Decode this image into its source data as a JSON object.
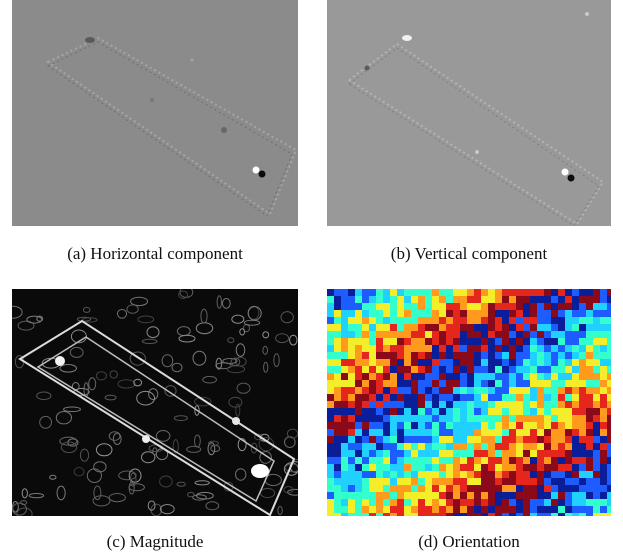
{
  "figure": {
    "panels": [
      {
        "id": "a",
        "caption": "(a)  Horizontal component",
        "colors": {
          "base": "#8b8b8b"
        }
      },
      {
        "id": "b",
        "caption": "(b)  Vertical component",
        "colors": {
          "base": "#999999"
        }
      },
      {
        "id": "c",
        "caption": "(c)  Magnitude",
        "colors": {
          "base": "#0a0a0a",
          "edge": "#e8e8e8"
        }
      },
      {
        "id": "d",
        "caption": "(d)  Orientation",
        "colors": {
          "palette": [
            "#0a1e9a",
            "#1d5cff",
            "#20d0ff",
            "#33ffcc",
            "#f4ee2a",
            "#ff9a1c",
            "#e5261c",
            "#8a0a1a"
          ]
        }
      }
    ]
  }
}
